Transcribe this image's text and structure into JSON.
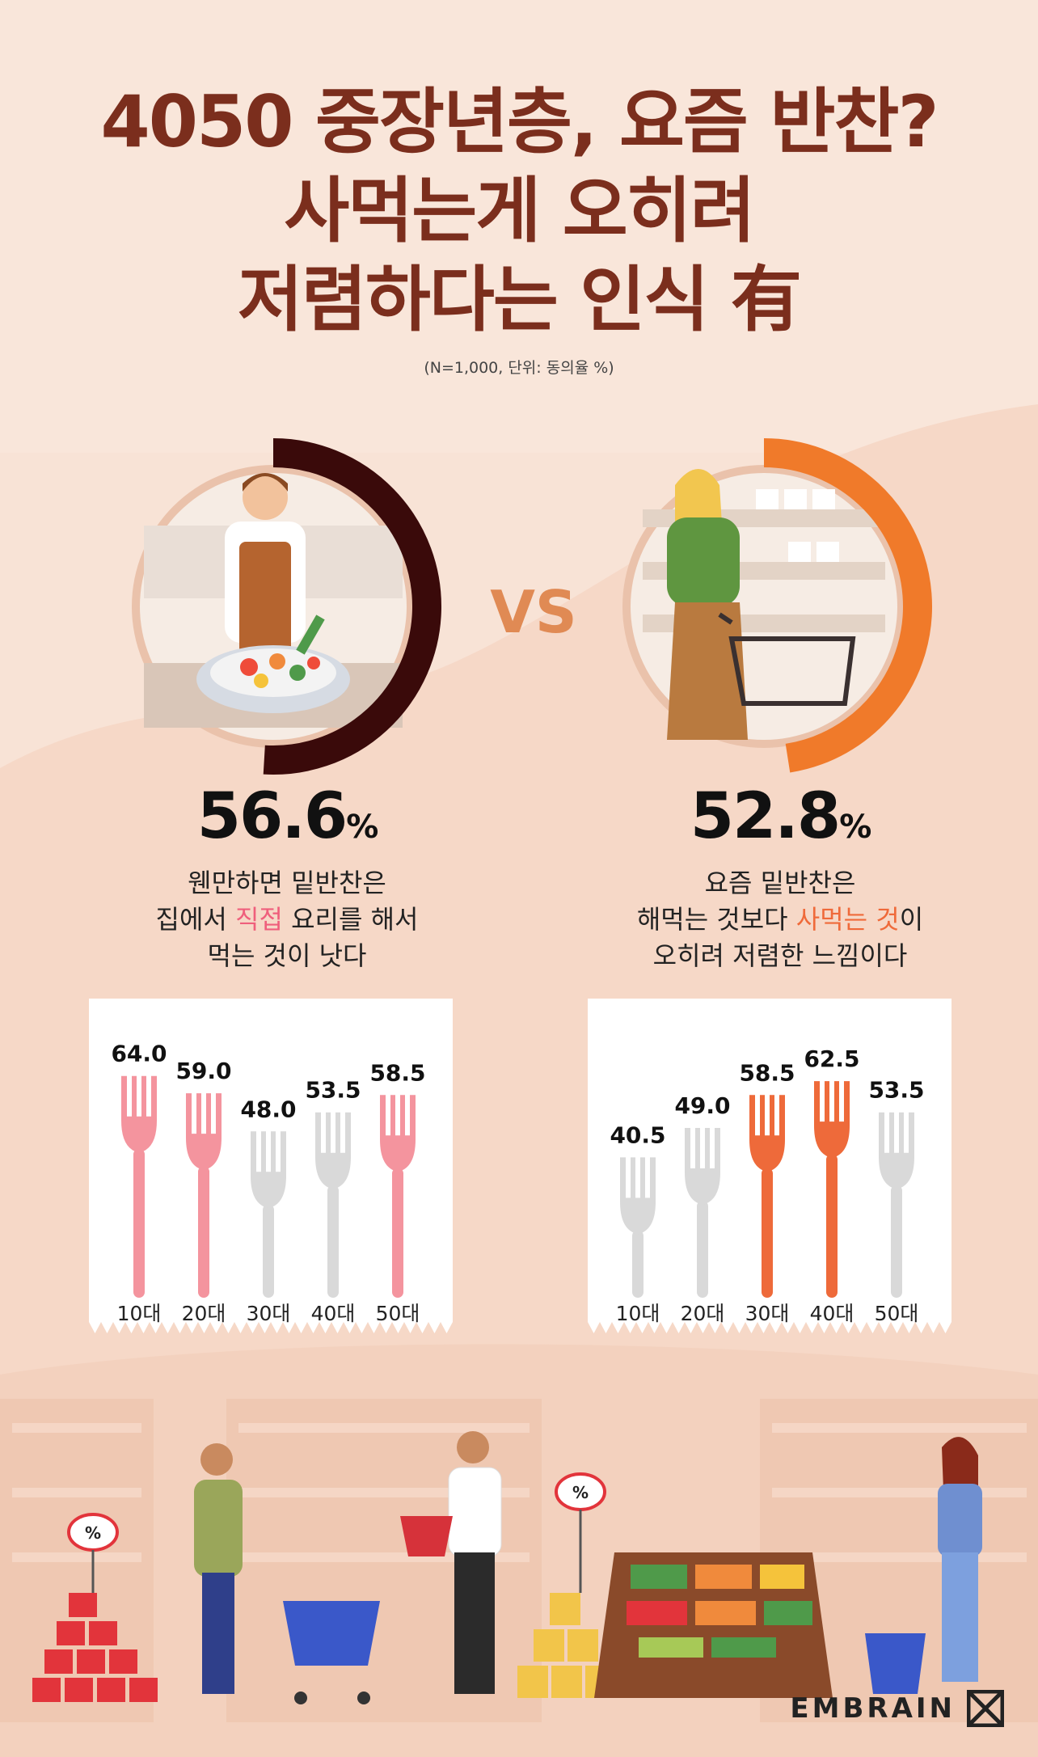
{
  "header": {
    "title_line1": "4050 중장년층, 요즘 반찬?",
    "title_line2": "사먹는게 오히려",
    "title_line3": "저렴하다는 인식 有",
    "note": "(N=1,000, 단위: 동의율 %)"
  },
  "vs_label": "VS",
  "left": {
    "big_value": "56.6",
    "big_unit": "%",
    "desc_line1": "웬만하면 밑반찬은",
    "desc_line2_pre": "집에서 ",
    "desc_line2_hl": "직접",
    "desc_line2_post": " 요리를 해서",
    "desc_line3": "먹는 것이 낫다"
  },
  "right": {
    "big_value": "52.8",
    "big_unit": "%",
    "desc_line1": "요즘 밑반찬은",
    "desc_line2_pre": "해먹는 것보다 ",
    "desc_line2_hl": "사먹는 것",
    "desc_line2_post": "이",
    "desc_line3": "오히려 저렴한 느낌이다"
  },
  "colors": {
    "title": "#7b2e1d",
    "ring_left": "#3a0a0a",
    "ring_right": "#f07a2a",
    "fork_pink": "#f4949e",
    "fork_orange": "#ee6a3a",
    "fork_gray": "#d9d9d9",
    "vs": "#e08a54"
  },
  "chart_data": [
    {
      "type": "bar",
      "categories": [
        "10대",
        "20대",
        "30대",
        "40대",
        "50대"
      ],
      "values": [
        64.0,
        59.0,
        48.0,
        53.5,
        58.5
      ],
      "value_labels": [
        "64.0",
        "59.0",
        "48.0",
        "53.5",
        "58.5"
      ],
      "highlight": [
        true,
        true,
        false,
        false,
        true
      ],
      "highlight_color": "#f4949e",
      "base_color": "#d9d9d9",
      "summary_value": 56.6
    },
    {
      "type": "bar",
      "categories": [
        "10대",
        "20대",
        "30대",
        "40대",
        "50대"
      ],
      "values": [
        40.5,
        49.0,
        58.5,
        62.5,
        53.5
      ],
      "value_labels": [
        "40.5",
        "49.0",
        "58.5",
        "62.5",
        "53.5"
      ],
      "highlight": [
        false,
        false,
        true,
        true,
        false
      ],
      "highlight_color": "#ee6a3a",
      "base_color": "#d9d9d9",
      "summary_value": 52.8
    }
  ],
  "logo": {
    "text": "EMBRAIN"
  }
}
